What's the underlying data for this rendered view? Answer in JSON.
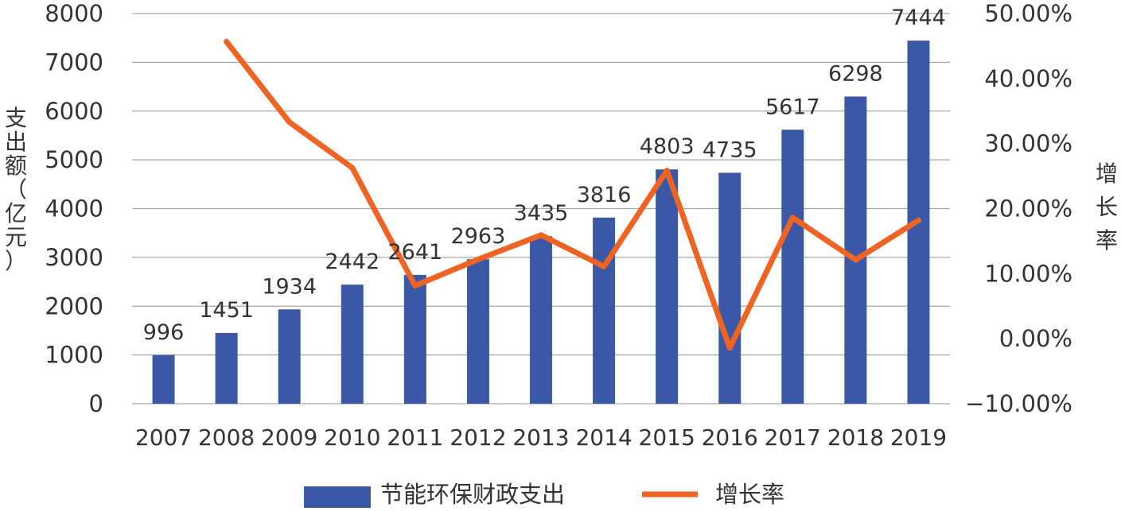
{
  "chart_data": {
    "type": "bar",
    "categories": [
      "2007",
      "2008",
      "2009",
      "2010",
      "2011",
      "2012",
      "2013",
      "2014",
      "2015",
      "2016",
      "2017",
      "2018",
      "2019"
    ],
    "series": [
      {
        "name": "节能环保财政支出",
        "type": "bar",
        "axis": "left",
        "values": [
          996,
          1451,
          1934,
          2442,
          2641,
          2963,
          3435,
          3816,
          4803,
          4735,
          5617,
          6298,
          7444
        ],
        "color": "#3b58a6"
      },
      {
        "name": "增长率",
        "type": "line",
        "axis": "right",
        "values": [
          null,
          45.68,
          33.29,
          26.27,
          8.15,
          12.19,
          15.93,
          11.09,
          25.87,
          -1.42,
          18.63,
          12.12,
          18.2
        ],
        "unit": "%",
        "color": "#f06423"
      }
    ],
    "ylabel_left": "支出额（亿元）",
    "ylabel_right": "增长率",
    "ylim_left": [
      0,
      8000
    ],
    "ylim_right": [
      -10,
      50
    ],
    "yticks_left": [
      "0",
      "1000",
      "2000",
      "3000",
      "4000",
      "5000",
      "6000",
      "7000",
      "8000"
    ],
    "yticks_right": [
      "−10.00%",
      "0.00%",
      "10.00%",
      "20.00%",
      "30.00%",
      "40.00%",
      "50.00%"
    ],
    "grid": true,
    "legend_position": "bottom"
  }
}
